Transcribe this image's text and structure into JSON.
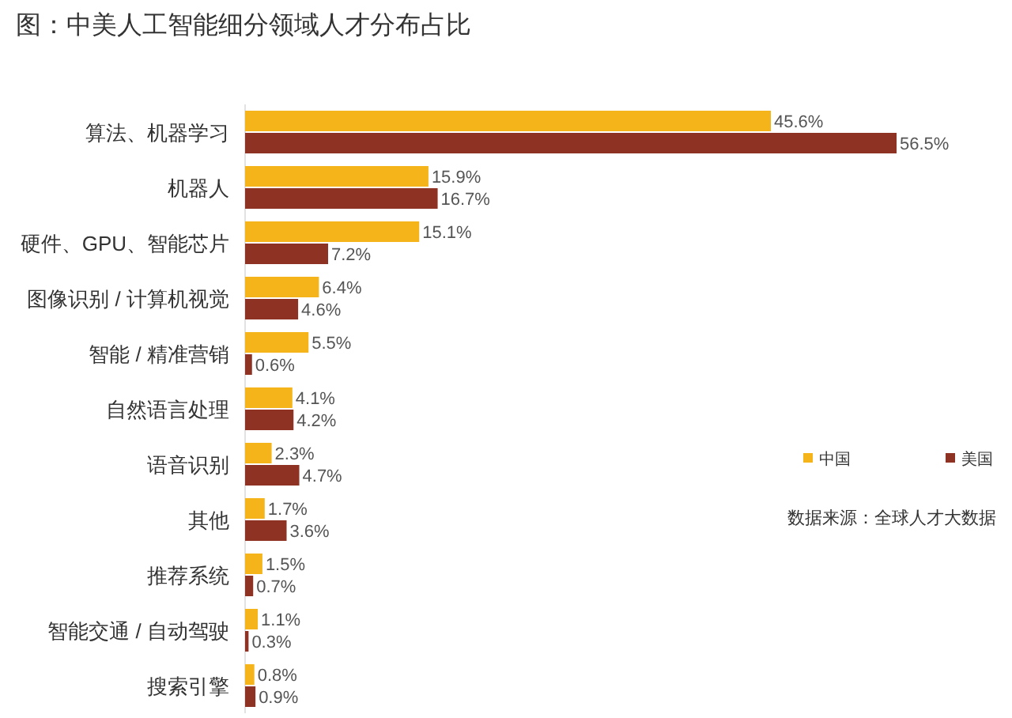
{
  "chart_data": {
    "type": "bar",
    "orientation": "horizontal",
    "title": "图：中美人工智能细分领域人才分布占比",
    "categories": [
      "算法、机器学习",
      "机器人",
      "硬件、GPU、智能芯片",
      "图像识别 / 计算机视觉",
      "智能 / 精准营销",
      "自然语言处理",
      "语音识别",
      "其他",
      "推荐系统",
      "智能交通 / 自动驾驶",
      "搜索引擎"
    ],
    "series": [
      {
        "name": "中国",
        "color": "#f4b41a",
        "values": [
          45.6,
          15.9,
          15.1,
          6.4,
          5.5,
          4.1,
          2.3,
          1.7,
          1.5,
          1.1,
          0.8
        ],
        "value_labels": [
          "45.6%",
          "15.9%",
          "15.1%",
          "6.4%",
          "5.5%",
          "4.1%",
          "2.3%",
          "1.7%",
          "1.5%",
          "1.1%",
          "0.8%"
        ]
      },
      {
        "name": "美国",
        "color": "#8e3324",
        "values": [
          56.5,
          16.7,
          7.2,
          4.6,
          0.6,
          4.2,
          4.7,
          3.6,
          0.7,
          0.3,
          0.9
        ],
        "value_labels": [
          "56.5%",
          "16.7%",
          "7.2%",
          "4.6%",
          "0.6%",
          "4.2%",
          "4.7%",
          "3.6%",
          "0.7%",
          "0.3%",
          "0.9%"
        ]
      }
    ],
    "legend": "right",
    "annotations": [
      "数据来源：全球人才大数据"
    ]
  }
}
